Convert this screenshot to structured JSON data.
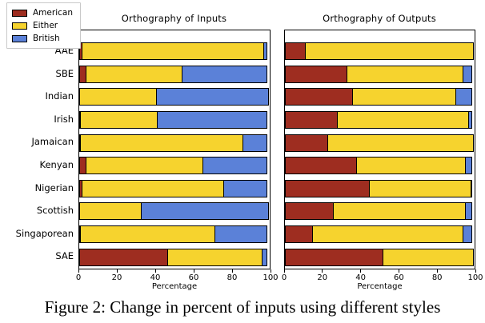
{
  "figure": {
    "caption": "Figure 2: Change in percent of inputs using different styles"
  },
  "legend": {
    "position": "upper-left",
    "entries": [
      {
        "label": "American",
        "color": "#9E2D20"
      },
      {
        "label": "Either",
        "color": "#F6D32E"
      },
      {
        "label": "British",
        "color": "#5B81D8"
      }
    ]
  },
  "colors": {
    "american": "#9E2D20",
    "either": "#F6D32E",
    "british": "#5B81D8",
    "bar_edge": "#000000"
  },
  "chart_data": [
    {
      "type": "bar",
      "orientation": "horizontal",
      "stacked": true,
      "title": "Orthography of Inputs",
      "xlabel": "Percentage",
      "xlim": [
        0,
        100
      ],
      "xticks": [
        0,
        20,
        40,
        60,
        80,
        100
      ],
      "grid": false,
      "categories": [
        "AAE",
        "SBE",
        "Indian",
        "Irish",
        "Jamaican",
        "Kenyan",
        "Nigerian",
        "Scottish",
        "Singaporean",
        "SAE"
      ],
      "series": [
        {
          "name": "American",
          "color": "#9E2D20",
          "values": [
            2,
            4,
            0,
            1,
            1,
            4,
            2,
            0,
            1,
            47
          ]
        },
        {
          "name": "Either",
          "color": "#F6D32E",
          "values": [
            96,
            51,
            41,
            41,
            86,
            62,
            75,
            33,
            71,
            50
          ]
        },
        {
          "name": "British",
          "color": "#5B81D8",
          "values": [
            2,
            45,
            59,
            58,
            13,
            34,
            23,
            67,
            28,
            3
          ]
        }
      ]
    },
    {
      "type": "bar",
      "orientation": "horizontal",
      "stacked": true,
      "title": "Orthography of Outputs",
      "xlabel": "Percentage",
      "xlim": [
        0,
        100
      ],
      "xticks": [
        0,
        20,
        40,
        60,
        80,
        100
      ],
      "grid": false,
      "categories": [
        "AAE",
        "SBE",
        "Indian",
        "Irish",
        "Jamaican",
        "Kenyan",
        "Nigerian",
        "Scottish",
        "Singaporean",
        "SAE"
      ],
      "series": [
        {
          "name": "American",
          "color": "#9E2D20",
          "values": [
            11,
            33,
            36,
            28,
            23,
            38,
            45,
            26,
            15,
            52
          ]
        },
        {
          "name": "Either",
          "color": "#F6D32E",
          "values": [
            89,
            62,
            55,
            70,
            77,
            58,
            54,
            70,
            80,
            48
          ]
        },
        {
          "name": "British",
          "color": "#5B81D8",
          "values": [
            0,
            5,
            9,
            2,
            0,
            4,
            1,
            4,
            5,
            0
          ]
        }
      ]
    }
  ]
}
